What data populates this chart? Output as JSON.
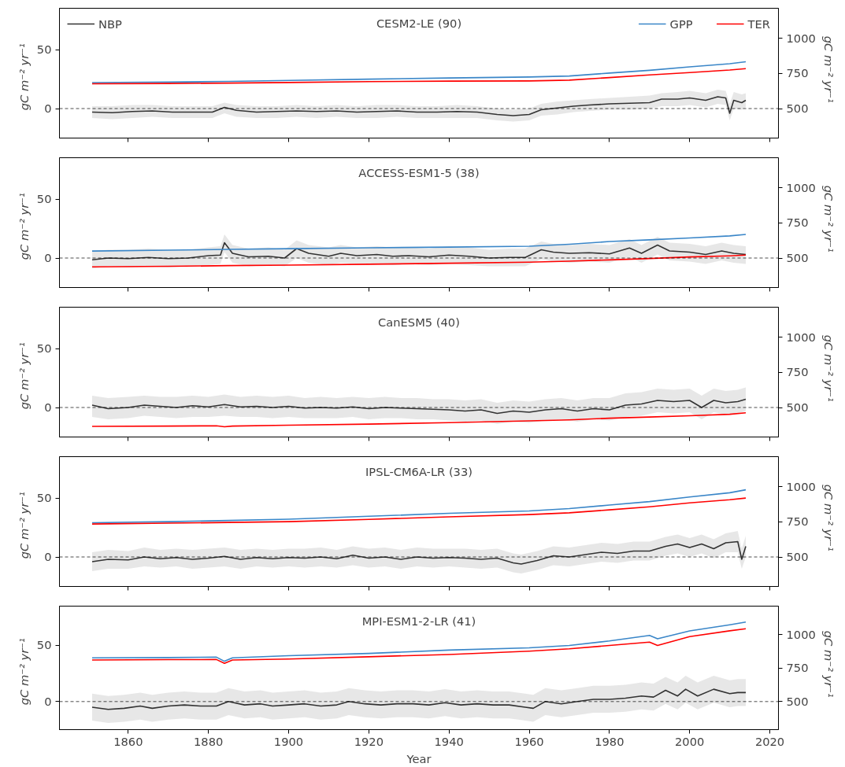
{
  "chart_data": [
    {
      "type": "line",
      "title": "CESM2-LE (90)",
      "ylabel": "gC  m⁻²  yr⁻¹",
      "y2label": "gC  m⁻²  yr⁻¹",
      "xlim": [
        1842.85,
        2022.15
      ],
      "xticks": [
        1860,
        1880,
        1900,
        1920,
        1940,
        1960,
        1980,
        2000,
        2020
      ],
      "ylim": [
        -25,
        85
      ],
      "yticks": [
        0,
        50
      ],
      "y2lim": [
        290,
        1215
      ],
      "y2ticks": [
        500,
        750,
        1000
      ],
      "tick_labels": "y",
      "legend": "top",
      "grid": false,
      "ref_lines": [
        {
          "axis": "y",
          "value": 0,
          "line_style": "dashed",
          "color": "#000000"
        }
      ],
      "series": [
        {
          "name": "NBP",
          "color": "#333333",
          "x": [
            1851,
            1856,
            1861,
            1866,
            1871,
            1876,
            1881,
            1884,
            1887,
            1892,
            1897,
            1902,
            1907,
            1912,
            1917,
            1922,
            1927,
            1932,
            1937,
            1942,
            1947,
            1952,
            1956,
            1960,
            1963,
            1967,
            1971,
            1975,
            1980,
            1985,
            1990,
            1993,
            1997,
            2000,
            2004,
            2007,
            2009,
            2010,
            2011,
            2013,
            2014
          ],
          "values": [
            -3,
            -3.5,
            -2.5,
            -2,
            -3,
            -3,
            -3,
            1,
            -1.5,
            -3,
            -2.5,
            -2,
            -2.5,
            -2,
            -3,
            -2.5,
            -2,
            -3,
            -3,
            -2.5,
            -3,
            -5,
            -6,
            -5,
            -1,
            0.5,
            2,
            3,
            4,
            4.5,
            5,
            8,
            8,
            9,
            7,
            10,
            9,
            -4,
            7,
            5,
            7
          ],
          "lower": [
            -8,
            -9,
            -8,
            -7,
            -8,
            -8,
            -8,
            -4,
            -7,
            -8,
            -8,
            -7,
            -8,
            -7,
            -8,
            -8,
            -7,
            -8,
            -8,
            -8,
            -8,
            -10,
            -11,
            -10,
            -6,
            -5,
            -3,
            -2,
            -1,
            -1,
            0,
            2,
            2,
            3,
            1,
            4,
            3,
            -10,
            0,
            -1,
            1
          ],
          "upper": [
            2,
            2,
            3,
            3,
            2,
            2,
            2,
            5,
            3,
            2,
            2,
            3,
            2,
            3,
            2,
            3,
            3,
            2,
            2,
            3,
            2,
            0,
            -1,
            0,
            4,
            6,
            7,
            8,
            9,
            10,
            11,
            13,
            14,
            15,
            13,
            16,
            15,
            4,
            14,
            12,
            13
          ]
        },
        {
          "name": "GPP",
          "color": "#3a86c8",
          "axis": "y2",
          "x": [
            1851,
            1870,
            1885,
            1900,
            1920,
            1940,
            1960,
            1970,
            1980,
            1990,
            2000,
            2010,
            2014
          ],
          "values": [
            685,
            689,
            694,
            701,
            710,
            718,
            725,
            732,
            753,
            773,
            797,
            820,
            834
          ]
        },
        {
          "name": "TER",
          "color": "#ff0000",
          "axis": "y2",
          "x": [
            1851,
            1870,
            1885,
            1900,
            1920,
            1940,
            1960,
            1970,
            1980,
            1990,
            2000,
            2010,
            2014
          ],
          "values": [
            677,
            679,
            682,
            686,
            692,
            696,
            697,
            703,
            721,
            740,
            757,
            775,
            785
          ]
        }
      ]
    },
    {
      "type": "line",
      "title": "ACCESS-ESM1-5 (38)",
      "ylabel": "gC  m⁻²  yr⁻¹",
      "y2label": "gC  m⁻²  yr⁻¹",
      "xlim": [
        1842.85,
        2022.15
      ],
      "xticks": [
        1860,
        1880,
        1900,
        1920,
        1940,
        1960,
        1980,
        2000,
        2020
      ],
      "ylim": [
        -25,
        85
      ],
      "yticks": [
        0,
        50
      ],
      "y2lim": [
        290,
        1215
      ],
      "y2ticks": [
        500,
        750,
        1000
      ],
      "tick_labels": "y",
      "grid": false,
      "ref_lines": [
        {
          "axis": "y",
          "value": 0,
          "line_style": "dashed",
          "color": "#000000"
        }
      ],
      "series": [
        {
          "color": "#333333",
          "x": [
            1851,
            1855,
            1860,
            1865,
            1870,
            1875,
            1880,
            1883,
            1884,
            1886,
            1890,
            1895,
            1899,
            1902,
            1905,
            1910,
            1913,
            1917,
            1922,
            1926,
            1930,
            1935,
            1940,
            1945,
            1950,
            1955,
            1959,
            1963,
            1966,
            1970,
            1975,
            1980,
            1985,
            1988,
            1992,
            1995,
            2000,
            2004,
            2008,
            2011,
            2014
          ],
          "values": [
            -1.5,
            0,
            -0.5,
            0.5,
            -0.5,
            0,
            2,
            2.5,
            13,
            4,
            1,
            1.5,
            0,
            8,
            4,
            1.5,
            4,
            2,
            3,
            1.5,
            2,
            1,
            2.5,
            1.5,
            0,
            0.5,
            0.5,
            7,
            5,
            4,
            4.5,
            3.5,
            8.5,
            4,
            11,
            6,
            5,
            3,
            6,
            4,
            3
          ],
          "lower": [
            -9,
            -7,
            -8,
            -7,
            -8,
            -7,
            -6,
            -5,
            5,
            -4,
            -7,
            -6,
            -7,
            0,
            -4,
            -6,
            -4,
            -5,
            -5,
            -6,
            -5,
            -6,
            -5,
            -6,
            -7,
            -7,
            -7,
            -1,
            -3,
            -4,
            -3,
            -4,
            1,
            -4,
            3,
            -2,
            -3,
            -5,
            -2,
            -4,
            -5
          ],
          "upper": [
            6,
            7,
            7,
            8,
            7,
            7,
            9,
            10,
            20,
            11,
            8,
            9,
            7,
            15,
            11,
            9,
            11,
            9,
            10,
            9,
            9,
            8,
            10,
            9,
            7,
            8,
            8,
            14,
            12,
            11,
            12,
            11,
            16,
            11,
            18,
            13,
            12,
            10,
            13,
            11,
            10
          ]
        },
        {
          "color": "#3a86c8",
          "axis": "y2",
          "x": [
            1851,
            1870,
            1885,
            1900,
            1920,
            1940,
            1960,
            1970,
            1980,
            1990,
            2000,
            2010,
            2014
          ],
          "values": [
            550,
            556,
            562,
            567,
            573,
            578,
            584,
            598,
            618,
            630,
            643,
            658,
            668
          ]
        },
        {
          "color": "#ff0000",
          "axis": "y2",
          "x": [
            1851,
            1870,
            1885,
            1900,
            1920,
            1940,
            1960,
            1970,
            1980,
            1990,
            2000,
            2010,
            2014
          ],
          "values": [
            437,
            441,
            446,
            450,
            456,
            463,
            471,
            478,
            487,
            497,
            508,
            516,
            521
          ]
        }
      ]
    },
    {
      "type": "line",
      "title": "CanESM5 (40)",
      "ylabel": "gC  m⁻²  yr⁻¹",
      "y2label": "gC  m⁻²  yr⁻¹",
      "xlim": [
        1842.85,
        2022.15
      ],
      "xticks": [
        1860,
        1880,
        1900,
        1920,
        1940,
        1960,
        1980,
        2000,
        2020
      ],
      "ylim": [
        -25,
        85
      ],
      "yticks": [
        0,
        50
      ],
      "y2lim": [
        290,
        1215
      ],
      "y2ticks": [
        500,
        750,
        1000
      ],
      "tick_labels": "y",
      "grid": false,
      "ref_lines": [
        {
          "axis": "y",
          "value": 0,
          "line_style": "dashed",
          "color": "#000000"
        }
      ],
      "series": [
        {
          "color": "#333333",
          "x": [
            1851,
            1855,
            1860,
            1864,
            1868,
            1872,
            1876,
            1880,
            1884,
            1888,
            1892,
            1896,
            1900,
            1904,
            1908,
            1912,
            1916,
            1920,
            1924,
            1928,
            1932,
            1936,
            1940,
            1944,
            1948,
            1952,
            1956,
            1960,
            1964,
            1968,
            1972,
            1976,
            1980,
            1984,
            1988,
            1992,
            1996,
            2000,
            2003,
            2006,
            2009,
            2012,
            2014
          ],
          "values": [
            2,
            -1,
            0,
            2,
            1,
            0,
            1.5,
            0.5,
            2.5,
            0.5,
            1,
            0,
            1,
            -0.5,
            0,
            -0.5,
            0.5,
            -1,
            0,
            -0.5,
            -1,
            -1.5,
            -2,
            -3,
            -2,
            -5,
            -3,
            -4,
            -2,
            -1,
            -3,
            -1,
            -2,
            2,
            3,
            6,
            5,
            6,
            0,
            6,
            4,
            5,
            7
          ],
          "lower": [
            -8,
            -10,
            -9,
            -7,
            -8,
            -9,
            -8,
            -8,
            -7,
            -8,
            -8,
            -9,
            -8,
            -9,
            -9,
            -9,
            -8,
            -10,
            -9,
            -9,
            -10,
            -10,
            -11,
            -12,
            -11,
            -14,
            -12,
            -13,
            -11,
            -10,
            -12,
            -10,
            -11,
            -8,
            -7,
            -4,
            -5,
            -4,
            -10,
            -4,
            -6,
            -5,
            -3
          ],
          "upper": [
            10,
            8,
            9,
            10,
            9,
            9,
            10,
            9,
            11,
            9,
            10,
            9,
            10,
            8,
            9,
            8,
            9,
            8,
            9,
            8,
            8,
            7,
            7,
            6,
            7,
            4,
            6,
            5,
            7,
            8,
            6,
            8,
            8,
            12,
            13,
            16,
            15,
            16,
            10,
            16,
            14,
            15,
            17
          ]
        },
        {
          "color": "#ff0000",
          "axis": "y2",
          "x": [
            1851,
            1870,
            1882,
            1884,
            1886,
            1900,
            1920,
            1940,
            1960,
            1970,
            1980,
            1990,
            2000,
            2010,
            2014
          ],
          "values": [
            366,
            368,
            370,
            363,
            368,
            374,
            382,
            392,
            405,
            412,
            424,
            432,
            441,
            452,
            462
          ]
        }
      ]
    },
    {
      "type": "line",
      "title": "IPSL-CM6A-LR (33)",
      "ylabel": "gC  m⁻²  yr⁻¹",
      "y2label": "gC  m⁻²  yr⁻¹",
      "xlim": [
        1842.85,
        2022.15
      ],
      "xticks": [
        1860,
        1880,
        1900,
        1920,
        1940,
        1960,
        1980,
        2000,
        2020
      ],
      "ylim": [
        -25,
        85
      ],
      "yticks": [
        0,
        50
      ],
      "y2lim": [
        290,
        1215
      ],
      "y2ticks": [
        500,
        750,
        1000
      ],
      "tick_labels": "y",
      "grid": false,
      "ref_lines": [
        {
          "axis": "y",
          "value": 0,
          "line_style": "dashed",
          "color": "#000000"
        }
      ],
      "series": [
        {
          "color": "#333333",
          "x": [
            1851,
            1855,
            1860,
            1864,
            1868,
            1872,
            1876,
            1880,
            1884,
            1888,
            1892,
            1896,
            1900,
            1904,
            1908,
            1912,
            1916,
            1920,
            1924,
            1928,
            1932,
            1936,
            1940,
            1944,
            1948,
            1952,
            1956,
            1958,
            1962,
            1966,
            1970,
            1974,
            1978,
            1982,
            1986,
            1990,
            1994,
            1997,
            2000,
            2003,
            2006,
            2009,
            2012,
            2013,
            2014
          ],
          "values": [
            -4,
            -2,
            -2.5,
            0,
            -1.5,
            -0.5,
            -2,
            -1,
            0.5,
            -2,
            -0.5,
            -1.5,
            -0.5,
            -1,
            0,
            -1.5,
            1.5,
            -1,
            0,
            -2,
            0,
            -1,
            -0.5,
            -1,
            -2,
            -1,
            -5,
            -6,
            -3,
            1,
            0,
            2,
            4,
            3,
            5,
            5,
            9,
            11,
            8,
            11,
            7,
            12,
            13,
            -2,
            9
          ],
          "lower": [
            -12,
            -10,
            -10,
            -8,
            -9,
            -8,
            -10,
            -9,
            -8,
            -10,
            -8,
            -9,
            -8,
            -9,
            -8,
            -9,
            -7,
            -9,
            -8,
            -10,
            -8,
            -9,
            -8,
            -9,
            -10,
            -9,
            -13,
            -14,
            -11,
            -7,
            -8,
            -6,
            -4,
            -5,
            -3,
            -3,
            1,
            3,
            0,
            3,
            -1,
            4,
            4,
            -10,
            0
          ],
          "upper": [
            4,
            6,
            5,
            8,
            6,
            7,
            6,
            7,
            8,
            6,
            7,
            6,
            7,
            7,
            8,
            6,
            9,
            7,
            8,
            6,
            8,
            7,
            7,
            7,
            6,
            7,
            3,
            2,
            5,
            9,
            8,
            10,
            12,
            11,
            13,
            13,
            17,
            19,
            16,
            19,
            15,
            20,
            22,
            7,
            18
          ]
        },
        {
          "color": "#3a86c8",
          "axis": "y2",
          "x": [
            1851,
            1870,
            1885,
            1900,
            1920,
            1940,
            1960,
            1970,
            1980,
            1990,
            2000,
            2010,
            2014
          ],
          "values": [
            744,
            752,
            760,
            769,
            790,
            811,
            828,
            845,
            870,
            895,
            928,
            958,
            979
          ]
        },
        {
          "color": "#ff0000",
          "axis": "y2",
          "x": [
            1851,
            1870,
            1885,
            1900,
            1920,
            1940,
            1960,
            1970,
            1980,
            1990,
            2000,
            2010,
            2014
          ],
          "values": [
            735,
            741,
            746,
            752,
            768,
            786,
            802,
            815,
            836,
            858,
            886,
            908,
            920
          ]
        }
      ]
    },
    {
      "type": "line",
      "title": "MPI-ESM1-2-LR (41)",
      "xlabel": "Year",
      "ylabel": "gC  m⁻²  yr⁻¹",
      "y2label": "gC  m⁻²  yr⁻¹",
      "xlim": [
        1842.85,
        2022.15
      ],
      "xticks": [
        1860,
        1880,
        1900,
        1920,
        1940,
        1960,
        1980,
        2000,
        2020
      ],
      "ylim": [
        -25,
        85
      ],
      "yticks": [
        0,
        50
      ],
      "y2lim": [
        290,
        1215
      ],
      "y2ticks": [
        500,
        750,
        1000
      ],
      "grid": false,
      "ref_lines": [
        {
          "axis": "y",
          "value": 0,
          "line_style": "dashed",
          "color": "#000000"
        }
      ],
      "series": [
        {
          "color": "#333333",
          "x": [
            1851,
            1855,
            1859,
            1863,
            1866,
            1870,
            1874,
            1878,
            1882,
            1885,
            1889,
            1893,
            1896,
            1900,
            1904,
            1908,
            1912,
            1915,
            1919,
            1923,
            1927,
            1931,
            1935,
            1939,
            1943,
            1947,
            1951,
            1955,
            1959,
            1961,
            1964,
            1968,
            1972,
            1976,
            1980,
            1984,
            1988,
            1991,
            1994,
            1997,
            1999,
            2002,
            2006,
            2010,
            2012,
            2014
          ],
          "values": [
            -5,
            -7,
            -6,
            -4,
            -6,
            -4,
            -3,
            -4,
            -4,
            0,
            -3,
            -2,
            -4,
            -3,
            -2,
            -4,
            -3,
            0,
            -2,
            -3,
            -2,
            -2,
            -3,
            -1,
            -3,
            -2,
            -3,
            -3,
            -5,
            -6,
            0,
            -2,
            0,
            2,
            2,
            3,
            5,
            4,
            10,
            5,
            11,
            5,
            11,
            7,
            8,
            8
          ],
          "lower": [
            -17,
            -19,
            -18,
            -16,
            -18,
            -16,
            -15,
            -16,
            -16,
            -12,
            -15,
            -14,
            -16,
            -15,
            -14,
            -16,
            -15,
            -12,
            -14,
            -15,
            -14,
            -14,
            -15,
            -13,
            -15,
            -14,
            -15,
            -15,
            -17,
            -18,
            -12,
            -14,
            -12,
            -10,
            -10,
            -9,
            -7,
            -8,
            -2,
            -7,
            -1,
            -7,
            -1,
            -5,
            -4,
            -4
          ],
          "upper": [
            7,
            5,
            6,
            8,
            6,
            8,
            9,
            8,
            8,
            12,
            9,
            10,
            8,
            9,
            10,
            8,
            9,
            12,
            10,
            9,
            10,
            10,
            9,
            11,
            9,
            10,
            9,
            9,
            7,
            6,
            12,
            10,
            12,
            14,
            14,
            15,
            17,
            16,
            22,
            17,
            23,
            17,
            23,
            19,
            20,
            20
          ]
        },
        {
          "color": "#3a86c8",
          "axis": "y2",
          "x": [
            1851,
            1870,
            1882,
            1884,
            1886,
            1900,
            1920,
            1940,
            1960,
            1970,
            1980,
            1990,
            1992,
            2000,
            2010,
            2014
          ],
          "values": [
            828,
            830,
            833,
            802,
            828,
            844,
            861,
            886,
            903,
            920,
            954,
            996,
            970,
            1029,
            1075,
            1096
          ]
        },
        {
          "color": "#ff0000",
          "axis": "y2",
          "x": [
            1851,
            1870,
            1882,
            1884,
            1886,
            1900,
            1920,
            1940,
            1960,
            1970,
            1980,
            1990,
            1992,
            2000,
            2010,
            2014
          ],
          "values": [
            811,
            814,
            815,
            786,
            811,
            819,
            836,
            853,
            878,
            895,
            920,
            945,
            920,
            987,
            1030,
            1046
          ]
        }
      ]
    }
  ]
}
